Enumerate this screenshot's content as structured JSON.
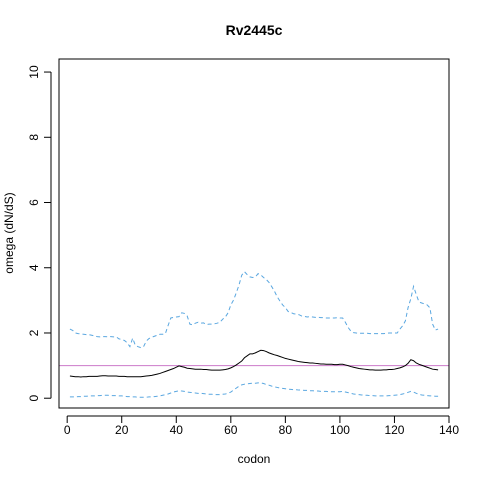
{
  "chart_data": {
    "type": "line",
    "title": "Rv2445c",
    "xlabel": "codon",
    "ylabel": "omega (dN/dS)",
    "xlim": [
      -3,
      140
    ],
    "ylim": [
      -0.3,
      10.4
    ],
    "xticks": [
      0,
      20,
      40,
      60,
      80,
      100,
      120,
      140
    ],
    "yticks": [
      0,
      2,
      4,
      6,
      8,
      10
    ],
    "reference_line": {
      "y": 1.0,
      "color": "#cc79c9"
    },
    "grid": false,
    "legend": "none",
    "x": [
      1,
      2,
      3,
      4,
      5,
      6,
      7,
      8,
      9,
      10,
      11,
      12,
      13,
      14,
      15,
      16,
      17,
      18,
      19,
      20,
      21,
      22,
      23,
      24,
      25,
      26,
      27,
      28,
      29,
      30,
      31,
      32,
      33,
      34,
      35,
      36,
      37,
      38,
      39,
      40,
      41,
      42,
      43,
      44,
      45,
      46,
      47,
      48,
      49,
      50,
      51,
      52,
      53,
      54,
      55,
      56,
      57,
      58,
      59,
      60,
      61,
      62,
      63,
      64,
      65,
      66,
      67,
      68,
      69,
      70,
      71,
      72,
      73,
      74,
      75,
      76,
      77,
      78,
      79,
      80,
      81,
      82,
      83,
      84,
      85,
      86,
      87,
      88,
      89,
      90,
      91,
      92,
      93,
      94,
      95,
      96,
      97,
      98,
      99,
      100,
      101,
      102,
      103,
      104,
      105,
      106,
      107,
      108,
      109,
      110,
      111,
      112,
      113,
      114,
      115,
      116,
      117,
      118,
      119,
      120,
      121,
      122,
      123,
      124,
      125,
      126,
      127,
      128,
      129,
      130,
      131,
      132,
      133,
      134,
      135,
      136
    ],
    "series": [
      {
        "style": "solid",
        "color": "#000000",
        "values": [
          0.68,
          0.67,
          0.66,
          0.66,
          0.65,
          0.66,
          0.66,
          0.67,
          0.67,
          0.67,
          0.67,
          0.68,
          0.69,
          0.69,
          0.68,
          0.68,
          0.68,
          0.68,
          0.67,
          0.67,
          0.67,
          0.66,
          0.66,
          0.66,
          0.66,
          0.66,
          0.66,
          0.67,
          0.68,
          0.69,
          0.7,
          0.72,
          0.74,
          0.76,
          0.79,
          0.82,
          0.85,
          0.88,
          0.91,
          0.95,
          0.99,
          0.97,
          0.95,
          0.92,
          0.91,
          0.9,
          0.89,
          0.89,
          0.89,
          0.88,
          0.88,
          0.87,
          0.86,
          0.86,
          0.86,
          0.86,
          0.87,
          0.88,
          0.9,
          0.93,
          0.97,
          1.02,
          1.08,
          1.14,
          1.24,
          1.3,
          1.36,
          1.36,
          1.39,
          1.43,
          1.47,
          1.46,
          1.43,
          1.39,
          1.36,
          1.33,
          1.31,
          1.28,
          1.25,
          1.22,
          1.2,
          1.18,
          1.16,
          1.14,
          1.12,
          1.11,
          1.1,
          1.09,
          1.08,
          1.08,
          1.07,
          1.06,
          1.05,
          1.05,
          1.04,
          1.04,
          1.04,
          1.03,
          1.03,
          1.04,
          1.04,
          1.02,
          1.0,
          0.97,
          0.95,
          0.93,
          0.91,
          0.9,
          0.89,
          0.88,
          0.87,
          0.87,
          0.86,
          0.86,
          0.86,
          0.87,
          0.87,
          0.88,
          0.88,
          0.89,
          0.91,
          0.93,
          0.96,
          1.0,
          1.07,
          1.18,
          1.15,
          1.08,
          1.04,
          1.01,
          0.98,
          0.95,
          0.92,
          0.89,
          0.88,
          0.87
        ]
      },
      {
        "style": "dashed",
        "color": "#5aa7e0",
        "values": [
          2.12,
          2.08,
          2.0,
          1.98,
          1.97,
          1.96,
          1.95,
          1.95,
          1.93,
          1.91,
          1.89,
          1.88,
          1.89,
          1.89,
          1.88,
          1.89,
          1.88,
          1.88,
          1.82,
          1.8,
          1.77,
          1.7,
          1.58,
          1.84,
          1.62,
          1.58,
          1.55,
          1.58,
          1.75,
          1.83,
          1.87,
          1.9,
          1.93,
          1.96,
          1.96,
          1.98,
          2.23,
          2.46,
          2.48,
          2.49,
          2.5,
          2.62,
          2.6,
          2.52,
          2.27,
          2.25,
          2.3,
          2.33,
          2.3,
          2.31,
          2.26,
          2.27,
          2.27,
          2.28,
          2.3,
          2.33,
          2.42,
          2.49,
          2.62,
          2.86,
          3.01,
          3.23,
          3.47,
          3.77,
          3.88,
          3.79,
          3.72,
          3.7,
          3.72,
          3.82,
          3.78,
          3.7,
          3.64,
          3.55,
          3.42,
          3.28,
          3.11,
          2.98,
          2.86,
          2.78,
          2.66,
          2.63,
          2.59,
          2.58,
          2.56,
          2.52,
          2.51,
          2.49,
          2.5,
          2.49,
          2.48,
          2.48,
          2.47,
          2.47,
          2.46,
          2.46,
          2.46,
          2.46,
          2.47,
          2.46,
          2.46,
          2.33,
          2.17,
          2.06,
          2.01,
          2.0,
          1.99,
          1.99,
          1.99,
          1.99,
          1.98,
          1.98,
          1.98,
          1.98,
          1.98,
          1.98,
          1.99,
          2.0,
          2.0,
          2.0,
          2.0,
          2.12,
          2.22,
          2.37,
          2.78,
          3.05,
          3.43,
          3.18,
          2.95,
          2.92,
          2.89,
          2.86,
          2.77,
          2.27,
          2.09,
          2.12
        ]
      },
      {
        "style": "dashed",
        "color": "#5aa7e0",
        "values": [
          0.04,
          0.04,
          0.04,
          0.05,
          0.05,
          0.06,
          0.06,
          0.07,
          0.07,
          0.07,
          0.08,
          0.08,
          0.09,
          0.09,
          0.09,
          0.08,
          0.08,
          0.08,
          0.07,
          0.07,
          0.06,
          0.05,
          0.05,
          0.04,
          0.04,
          0.03,
          0.03,
          0.03,
          0.03,
          0.04,
          0.04,
          0.05,
          0.06,
          0.07,
          0.09,
          0.11,
          0.13,
          0.16,
          0.19,
          0.21,
          0.23,
          0.22,
          0.21,
          0.19,
          0.18,
          0.17,
          0.16,
          0.15,
          0.15,
          0.14,
          0.13,
          0.12,
          0.12,
          0.11,
          0.11,
          0.11,
          0.12,
          0.13,
          0.15,
          0.19,
          0.25,
          0.31,
          0.37,
          0.41,
          0.43,
          0.44,
          0.45,
          0.46,
          0.46,
          0.47,
          0.47,
          0.45,
          0.42,
          0.4,
          0.37,
          0.35,
          0.33,
          0.31,
          0.3,
          0.29,
          0.28,
          0.27,
          0.26,
          0.26,
          0.25,
          0.25,
          0.24,
          0.24,
          0.23,
          0.23,
          0.22,
          0.22,
          0.21,
          0.21,
          0.21,
          0.2,
          0.2,
          0.2,
          0.2,
          0.2,
          0.21,
          0.19,
          0.17,
          0.15,
          0.13,
          0.12,
          0.11,
          0.1,
          0.09,
          0.09,
          0.08,
          0.08,
          0.07,
          0.07,
          0.07,
          0.07,
          0.07,
          0.08,
          0.08,
          0.09,
          0.1,
          0.11,
          0.13,
          0.15,
          0.18,
          0.21,
          0.19,
          0.15,
          0.12,
          0.1,
          0.09,
          0.08,
          0.07,
          0.07,
          0.06,
          0.06
        ]
      }
    ]
  }
}
